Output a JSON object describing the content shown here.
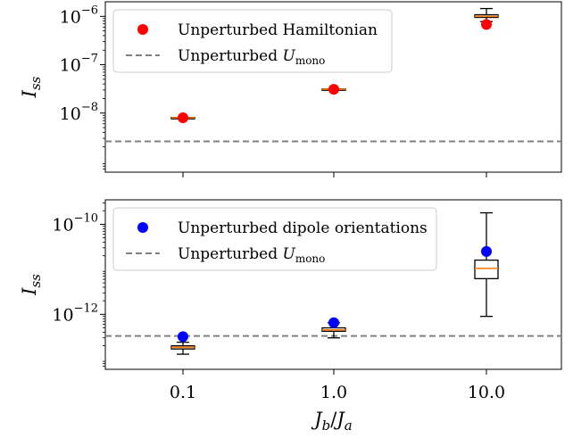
{
  "chart_data": [
    {
      "type": "scatter",
      "panel": "top",
      "x_categories": [
        "0.1",
        "1.0",
        "10.0"
      ],
      "y_scale": "log",
      "ylim": [
        6e-10,
        2e-06
      ],
      "ylabel_main": "I",
      "ylabel_sub": "ss",
      "y_ticks": [
        {
          "value": 1e-08,
          "base": "10",
          "exp": "−8"
        },
        {
          "value": 1e-07,
          "base": "10",
          "exp": "−7"
        },
        {
          "value": 1e-06,
          "base": "10",
          "exp": "−6"
        }
      ],
      "points": {
        "name": "Unperturbed Hamiltonian",
        "color": "#ff0000",
        "values": [
          8e-09,
          3.1e-08,
          6.8e-07
        ]
      },
      "boxes": [
        {
          "q1": 7.9e-09,
          "median": 8e-09,
          "q3": 8.1e-09,
          "whislo": 7.9e-09,
          "whishi": 8.1e-09
        },
        {
          "q1": 3.05e-08,
          "median": 3.1e-08,
          "q3": 3.15e-08,
          "whislo": 3.05e-08,
          "whishi": 3.15e-08
        },
        {
          "q1": 9.5e-07,
          "median": 1e-06,
          "q3": 1.08e-06,
          "whislo": 7.8e-07,
          "whishi": 1.45e-06
        }
      ],
      "hline": {
        "value": 2.6e-09,
        "color": "#808080",
        "style": "dashed"
      },
      "legend": {
        "location": "upper-left",
        "entries": [
          {
            "label": "Unperturbed Hamiltonian",
            "marker": "circle",
            "color": "#ff0000"
          },
          {
            "label_main": "Unperturbed ",
            "label_var": "U",
            "label_sub": "mono",
            "marker": "dashed-line",
            "color": "#808080"
          }
        ]
      }
    },
    {
      "type": "scatter",
      "panel": "bottom",
      "x_categories": [
        "0.1",
        "1.0",
        "10.0"
      ],
      "y_scale": "log",
      "ylim": [
        6e-14,
        3.5e-10
      ],
      "ylabel_main": "I",
      "ylabel_sub": "ss",
      "xlabel_num": "J",
      "xlabel_num_sub": "b",
      "xlabel_den": "J",
      "xlabel_den_sub": "a",
      "y_ticks": [
        {
          "value": 1e-12,
          "base": "10",
          "exp": "−12"
        },
        {
          "value": 1e-10,
          "base": "10",
          "exp": "−10"
        }
      ],
      "points": {
        "name": "Unperturbed dipole orientations",
        "color": "#0000ff",
        "values": [
          3.2e-13,
          6.5e-13,
          2.5e-11
        ]
      },
      "boxes": [
        {
          "q1": 1.7e-13,
          "median": 1.85e-13,
          "q3": 2e-13,
          "whislo": 1.3e-13,
          "whishi": 2.4e-13
        },
        {
          "q1": 4.2e-13,
          "median": 4.5e-13,
          "q3": 5e-13,
          "whislo": 3e-13,
          "whishi": 6.5e-13
        },
        {
          "q1": 6.2e-12,
          "median": 1.05e-11,
          "q3": 1.6e-11,
          "whislo": 9e-13,
          "whishi": 1.8e-10
        }
      ],
      "hline": {
        "value": 3.3e-13,
        "color": "#808080",
        "style": "dashed"
      },
      "legend": {
        "location": "upper-left",
        "entries": [
          {
            "label": "Unperturbed dipole orientations",
            "marker": "circle",
            "color": "#0000ff"
          },
          {
            "label_main": "Unperturbed ",
            "label_var": "U",
            "label_sub": "mono",
            "marker": "dashed-line",
            "color": "#808080"
          }
        ]
      }
    }
  ]
}
